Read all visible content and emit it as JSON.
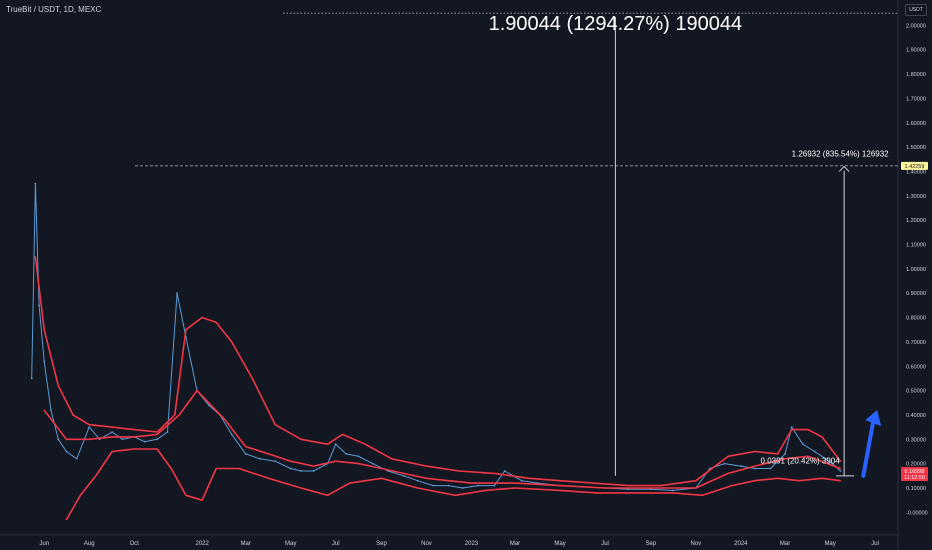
{
  "chart_data": {
    "type": "line",
    "title": "TrueBit / USDT, 1D, MEXC",
    "unit": "USDT",
    "ylim": [
      -0.05,
      2.1
    ],
    "y_ticks": [
      -0.0,
      0.1,
      0.2,
      0.3,
      0.4,
      0.5,
      0.6,
      0.7,
      0.8,
      0.9,
      1.0,
      1.1,
      1.2,
      1.3,
      1.4,
      1.5,
      1.6,
      1.7,
      1.8,
      1.9,
      2.0
    ],
    "y_tick_labels": [
      "-0.00000",
      "0.10000",
      "0.20000",
      "0.30000",
      "0.40000",
      "0.50000",
      "0.60000",
      "0.70000",
      "0.80000",
      "0.90000",
      "1.00000",
      "1.10000",
      "1.20000",
      "1.30000",
      "1.40000",
      "1.50000",
      "1.60000",
      "1.70000",
      "1.80000",
      "1.90000",
      "2.00000"
    ],
    "x_tick_labels": [
      "Jun",
      "Aug",
      "Oct",
      "2022",
      "Mar",
      "May",
      "Jul",
      "Sep",
      "Nov",
      "2023",
      "Mar",
      "May",
      "Jul",
      "Sep",
      "Nov",
      "2024",
      "Mar",
      "May",
      "Jul"
    ],
    "x_tick_dates": [
      "2021-06-01",
      "2021-08-01",
      "2021-10-01",
      "2022-01-01",
      "2022-03-01",
      "2022-05-01",
      "2022-07-01",
      "2022-09-01",
      "2022-11-01",
      "2023-01-01",
      "2023-03-01",
      "2023-05-01",
      "2023-07-01",
      "2023-09-01",
      "2023-11-01",
      "2024-01-01",
      "2024-03-01",
      "2024-05-01",
      "2024-07-01"
    ],
    "xlim": [
      "2021-05-10",
      "2024-08-01"
    ],
    "series": [
      {
        "role": "price",
        "color": "#5b9bd5",
        "x": [
          "2021-05-15",
          "2021-05-20",
          "2021-05-25",
          "2021-06-01",
          "2021-06-10",
          "2021-06-20",
          "2021-07-01",
          "2021-07-15",
          "2021-08-01",
          "2021-08-15",
          "2021-09-01",
          "2021-09-15",
          "2021-10-01",
          "2021-10-15",
          "2021-11-01",
          "2021-11-15",
          "2021-11-28",
          "2021-12-10",
          "2021-12-25",
          "2022-01-10",
          "2022-01-25",
          "2022-02-10",
          "2022-03-01",
          "2022-03-20",
          "2022-04-10",
          "2022-05-01",
          "2022-05-15",
          "2022-06-01",
          "2022-06-20",
          "2022-07-01",
          "2022-07-15",
          "2022-08-01",
          "2022-08-20",
          "2022-09-10",
          "2022-10-01",
          "2022-10-20",
          "2022-11-10",
          "2022-12-01",
          "2022-12-20",
          "2023-01-10",
          "2023-02-01",
          "2023-02-15",
          "2023-03-10",
          "2023-04-01",
          "2023-05-01",
          "2023-06-01",
          "2023-07-01",
          "2023-08-01",
          "2023-09-01",
          "2023-10-01",
          "2023-11-01",
          "2023-11-20",
          "2023-12-10",
          "2024-01-01",
          "2024-01-20",
          "2024-02-10",
          "2024-03-01",
          "2024-03-10",
          "2024-03-25",
          "2024-04-10",
          "2024-04-25",
          "2024-05-08",
          "2024-05-15"
        ],
        "y": [
          0.55,
          1.35,
          0.85,
          0.62,
          0.42,
          0.3,
          0.25,
          0.22,
          0.35,
          0.3,
          0.33,
          0.3,
          0.31,
          0.29,
          0.3,
          0.33,
          0.9,
          0.72,
          0.5,
          0.44,
          0.4,
          0.32,
          0.24,
          0.22,
          0.21,
          0.18,
          0.17,
          0.17,
          0.2,
          0.28,
          0.24,
          0.23,
          0.2,
          0.17,
          0.15,
          0.13,
          0.11,
          0.11,
          0.1,
          0.11,
          0.11,
          0.17,
          0.13,
          0.12,
          0.11,
          0.105,
          0.1,
          0.095,
          0.095,
          0.09,
          0.1,
          0.18,
          0.2,
          0.19,
          0.18,
          0.18,
          0.24,
          0.35,
          0.28,
          0.25,
          0.22,
          0.19,
          0.17
        ]
      },
      {
        "role": "upper band",
        "color": "#f23645",
        "x": [
          "2021-05-20",
          "2021-06-01",
          "2021-06-20",
          "2021-07-10",
          "2021-08-01",
          "2021-09-01",
          "2021-10-01",
          "2021-11-01",
          "2021-11-25",
          "2021-12-10",
          "2022-01-01",
          "2022-01-20",
          "2022-02-10",
          "2022-03-10",
          "2022-04-10",
          "2022-05-15",
          "2022-06-20",
          "2022-07-10",
          "2022-08-10",
          "2022-09-15",
          "2022-11-01",
          "2022-12-15",
          "2023-02-01",
          "2023-03-20",
          "2023-05-01",
          "2023-06-15",
          "2023-08-01",
          "2023-09-15",
          "2023-11-01",
          "2023-12-15",
          "2024-01-20",
          "2024-02-20",
          "2024-03-10",
          "2024-04-01",
          "2024-04-20",
          "2024-05-15"
        ],
        "y": [
          1.05,
          0.75,
          0.52,
          0.4,
          0.36,
          0.35,
          0.34,
          0.33,
          0.4,
          0.75,
          0.8,
          0.78,
          0.7,
          0.55,
          0.36,
          0.3,
          0.28,
          0.32,
          0.28,
          0.22,
          0.19,
          0.17,
          0.16,
          0.14,
          0.13,
          0.12,
          0.11,
          0.11,
          0.13,
          0.23,
          0.25,
          0.24,
          0.34,
          0.34,
          0.31,
          0.21
        ]
      },
      {
        "role": "basis",
        "color": "#f23645",
        "x": [
          "2021-06-01",
          "2021-07-01",
          "2021-08-01",
          "2021-09-01",
          "2021-10-01",
          "2021-11-01",
          "2021-12-01",
          "2021-12-25",
          "2022-02-01",
          "2022-03-01",
          "2022-04-01",
          "2022-05-01",
          "2022-06-01",
          "2022-07-01",
          "2022-08-01",
          "2022-09-01",
          "2022-10-01",
          "2022-11-01",
          "2022-12-01",
          "2023-01-01",
          "2023-03-01",
          "2023-05-01",
          "2023-07-01",
          "2023-09-01",
          "2023-11-01",
          "2023-12-15",
          "2024-01-20",
          "2024-03-01",
          "2024-04-01",
          "2024-05-15"
        ],
        "y": [
          0.42,
          0.3,
          0.3,
          0.31,
          0.31,
          0.32,
          0.4,
          0.5,
          0.38,
          0.27,
          0.24,
          0.21,
          0.19,
          0.21,
          0.2,
          0.18,
          0.16,
          0.14,
          0.13,
          0.12,
          0.12,
          0.11,
          0.1,
          0.1,
          0.1,
          0.16,
          0.19,
          0.22,
          0.23,
          0.18
        ]
      },
      {
        "role": "lower band",
        "color": "#f23645",
        "x": [
          "2021-07-01",
          "2021-07-20",
          "2021-08-10",
          "2021-09-01",
          "2021-10-01",
          "2021-11-01",
          "2021-11-20",
          "2021-12-10",
          "2022-01-01",
          "2022-01-20",
          "2022-02-20",
          "2022-04-01",
          "2022-05-15",
          "2022-06-20",
          "2022-07-20",
          "2022-09-01",
          "2022-10-20",
          "2022-12-10",
          "2023-01-20",
          "2023-03-01",
          "2023-05-01",
          "2023-06-20",
          "2023-08-10",
          "2023-10-01",
          "2023-11-10",
          "2023-12-20",
          "2024-01-20",
          "2024-02-20",
          "2024-03-20",
          "2024-04-20",
          "2024-05-15"
        ],
        "y": [
          -0.03,
          0.07,
          0.15,
          0.25,
          0.26,
          0.26,
          0.18,
          0.07,
          0.05,
          0.18,
          0.18,
          0.14,
          0.1,
          0.07,
          0.12,
          0.14,
          0.1,
          0.07,
          0.09,
          0.1,
          0.09,
          0.08,
          0.08,
          0.08,
          0.07,
          0.11,
          0.13,
          0.14,
          0.13,
          0.14,
          0.13
        ]
      }
    ],
    "annotations": [
      {
        "text": "1.90044 (1294.27%) 190044",
        "x": "2023-07-15",
        "y_top": 2.05,
        "y_bottom": 0.15
      },
      {
        "text": "1.26932 (835.54%) 126932",
        "x": "2024-05-20",
        "y_top": 1.42,
        "y_bottom": 0.15
      },
      {
        "text": "0.0391 (20.42%) 3904",
        "x": "2024-05-20",
        "y": 0.2
      }
    ],
    "reference_lines": [
      {
        "y": 2.05,
        "style": "dotted"
      },
      {
        "y": 1.4229,
        "style": "dashed"
      }
    ],
    "price_tags": [
      {
        "label": "1.42259",
        "value": 1.4229,
        "bg": "#fff59d",
        "fg": "#131722"
      },
      {
        "label": "0.16998",
        "value": 0.17,
        "bg": "#f23645",
        "fg": "#ffffff"
      },
      {
        "label": "11:12:50",
        "value": 0.145,
        "bg": "#f23645",
        "fg": "#ffffff"
      }
    ],
    "arrow": {
      "color": "#2962ff",
      "from": [
        "2024-06-15",
        0.15
      ],
      "to": [
        "2024-07-01",
        0.42
      ]
    },
    "grid": false,
    "legend": "none"
  },
  "colors": {
    "background": "#131722",
    "axis_text": "#d1d4dc",
    "band": "#f23645"
  }
}
